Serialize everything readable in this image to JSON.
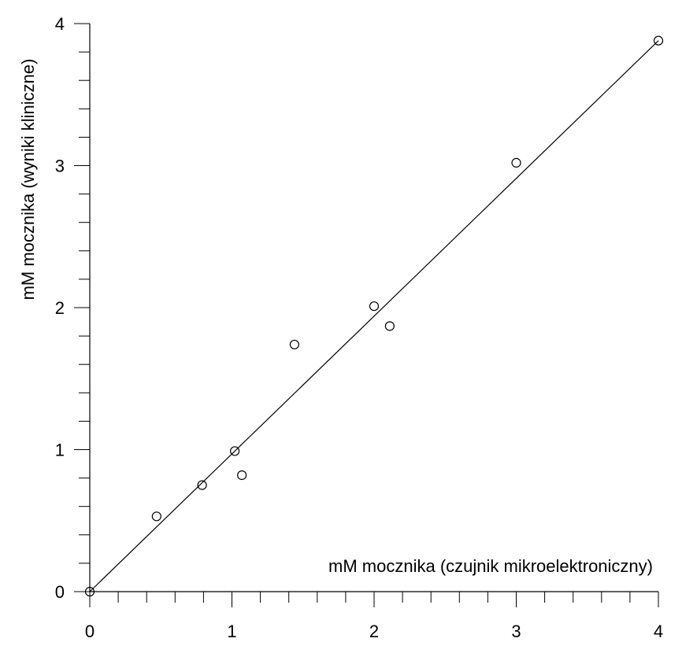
{
  "chart_data": {
    "type": "scatter",
    "title": "",
    "xlabel": "mM mocznika (czujnik mikroelektroniczny)",
    "ylabel": "mM mocznika (wyniki kliniczne)",
    "xlim": [
      0,
      4
    ],
    "ylim": [
      0,
      4
    ],
    "x_ticks": [
      "0",
      "1",
      "2",
      "3",
      "4"
    ],
    "y_ticks": [
      "0",
      "1",
      "2",
      "3",
      "4"
    ],
    "minor_tick_step": 0.2,
    "grid": false,
    "legend": "none",
    "series": [
      {
        "points": [
          {
            "x": 0.0,
            "y": 0.0
          },
          {
            "x": 0.47,
            "y": 0.53
          },
          {
            "x": 0.79,
            "y": 0.75
          },
          {
            "x": 1.02,
            "y": 0.99
          },
          {
            "x": 1.07,
            "y": 0.82
          },
          {
            "x": 1.44,
            "y": 1.74
          },
          {
            "x": 2.0,
            "y": 2.01
          },
          {
            "x": 2.11,
            "y": 1.87
          },
          {
            "x": 3.0,
            "y": 3.02
          },
          {
            "x": 4.0,
            "y": 3.88
          }
        ]
      }
    ],
    "fit_line": {
      "x": [
        0,
        4
      ],
      "y": [
        0,
        3.88
      ]
    }
  }
}
